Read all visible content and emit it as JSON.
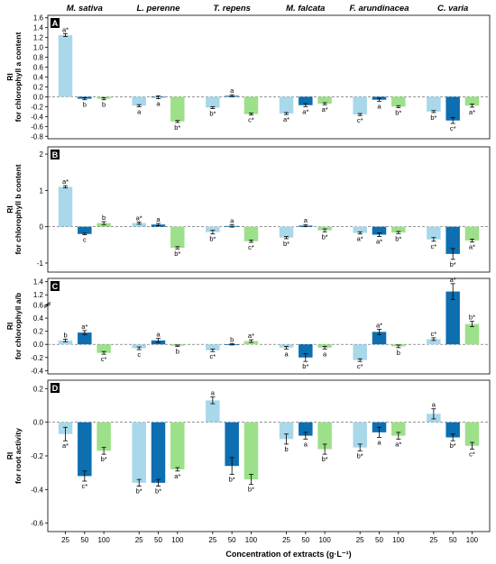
{
  "xlabel": "Concentration of extracts (g·L⁻¹)",
  "species": [
    "M. sativa",
    "L. perenne",
    "T. repens",
    "M. falcata",
    "F. arundinacea",
    "C. varia"
  ],
  "concentrations": [
    "25",
    "50",
    "100"
  ],
  "colors": {
    "c25": "#a8d8ea",
    "c50": "#0d6eb0",
    "c100": "#9de08a"
  },
  "chart_data": [
    {
      "type": "bar",
      "panel": "A",
      "ylabel": [
        "RI",
        "for chlorophyll a content"
      ],
      "ylim": [
        -0.85,
        1.65
      ],
      "yticks": [
        -0.8,
        -0.6,
        -0.4,
        -0.2,
        0.0,
        0.2,
        0.4,
        0.6,
        0.8,
        1.0,
        1.2,
        1.4,
        1.6
      ],
      "ytick_labels": [
        "-0.8",
        "-0.6",
        "-0.4",
        "-0.2",
        "0.0",
        "0.2",
        "0.4",
        "0.6",
        "0.8",
        "1.0",
        "1.2",
        "1.4",
        "1.6"
      ],
      "values": [
        1.25,
        -0.04,
        -0.04,
        -0.18,
        -0.01,
        -0.5,
        -0.22,
        0.02,
        -0.35,
        -0.34,
        -0.17,
        -0.14,
        -0.36,
        -0.06,
        -0.2,
        -0.3,
        -0.48,
        -0.18
      ],
      "errors": [
        0.03,
        0.02,
        0.02,
        0.02,
        0.03,
        0.02,
        0.02,
        0.02,
        0.02,
        0.02,
        0.03,
        0.02,
        0.02,
        0.03,
        0.02,
        0.02,
        0.06,
        0.03
      ],
      "labels": [
        "a*",
        "b",
        "b",
        "a",
        "a",
        "b*",
        "b*",
        "a",
        "c*",
        "a*",
        "a*",
        "a*",
        "c*",
        "a",
        "b*",
        "b*",
        "c*",
        "a*"
      ]
    },
    {
      "type": "bar",
      "panel": "B",
      "ylabel": [
        "RI",
        "for chlorophyll b content"
      ],
      "ylim": [
        -1.25,
        2.2
      ],
      "yticks": [
        -1,
        0,
        1,
        2
      ],
      "ytick_labels": [
        "-1",
        "0",
        "1",
        "2"
      ],
      "values": [
        1.1,
        -0.2,
        0.1,
        0.1,
        0.06,
        -0.58,
        -0.15,
        0.02,
        -0.4,
        -0.3,
        0.03,
        -0.1,
        -0.17,
        -0.22,
        -0.16,
        -0.35,
        -0.75,
        -0.38
      ],
      "errors": [
        0.03,
        0.02,
        0.04,
        0.03,
        0.03,
        0.03,
        0.05,
        0.03,
        0.03,
        0.03,
        0.03,
        0.04,
        0.03,
        0.05,
        0.03,
        0.05,
        0.15,
        0.04
      ],
      "labels": [
        "a*",
        "c",
        "b",
        "a*",
        "a",
        "b*",
        "b*",
        "a",
        "c*",
        "b*",
        "a",
        "b*",
        "a*",
        "a*",
        "b*",
        "c*",
        "b*",
        "a*"
      ]
    },
    {
      "type": "bar",
      "panel": "C",
      "ylabel": [
        "RI",
        "for chlorophyll a/b"
      ],
      "axis_break": [
        0.6,
        1.1
      ],
      "ylim": [
        -0.45,
        1.45
      ],
      "yticks": [
        -0.4,
        -0.2,
        0.0,
        0.2,
        0.4,
        0.6,
        1.2,
        1.4
      ],
      "ytick_labels": [
        "-0.4",
        "-0.2",
        "0.0",
        "0.2",
        "0.4",
        "0.6",
        "1.2",
        "1.4"
      ],
      "values": [
        0.06,
        0.18,
        -0.13,
        -0.06,
        0.06,
        -0.02,
        -0.09,
        0.0,
        0.05,
        -0.05,
        -0.2,
        -0.05,
        -0.24,
        0.19,
        -0.03,
        0.08,
        1.25,
        0.31
      ],
      "errors": [
        0.02,
        0.03,
        0.02,
        0.02,
        0.03,
        0.01,
        0.02,
        0.01,
        0.02,
        0.02,
        0.06,
        0.02,
        0.02,
        0.04,
        0.02,
        0.02,
        0.12,
        0.04
      ],
      "labels": [
        "b",
        "a*",
        "c*",
        "c",
        "a",
        "b",
        "c*",
        "b",
        "a*",
        "a",
        "b*",
        "a",
        "c*",
        "a*",
        "b",
        "c*",
        "a*",
        "b*"
      ]
    },
    {
      "type": "bar",
      "panel": "D",
      "ylabel": [
        "RI",
        "for root activity"
      ],
      "ylim": [
        -0.65,
        0.25
      ],
      "yticks": [
        -0.6,
        -0.4,
        -0.2,
        0.0,
        0.2
      ],
      "ytick_labels": [
        "-0.6",
        "-0.4",
        "-0.2",
        "0.0",
        "0.2"
      ],
      "values": [
        -0.07,
        -0.32,
        -0.17,
        -0.36,
        -0.36,
        -0.28,
        0.13,
        -0.26,
        -0.34,
        -0.1,
        -0.08,
        -0.16,
        -0.15,
        -0.06,
        -0.08,
        0.05,
        -0.09,
        -0.14
      ],
      "errors": [
        0.04,
        0.03,
        0.02,
        0.02,
        0.02,
        0.01,
        0.02,
        0.05,
        0.03,
        0.03,
        0.02,
        0.03,
        0.02,
        0.03,
        0.02,
        0.03,
        0.02,
        0.02
      ],
      "labels": [
        "a*",
        "c*",
        "b*",
        "b*",
        "b*",
        "a*",
        "a",
        "b*",
        "b*",
        "b",
        "a",
        "b*",
        "b*",
        "a",
        "a*",
        "a",
        "b*",
        "c*"
      ]
    }
  ]
}
